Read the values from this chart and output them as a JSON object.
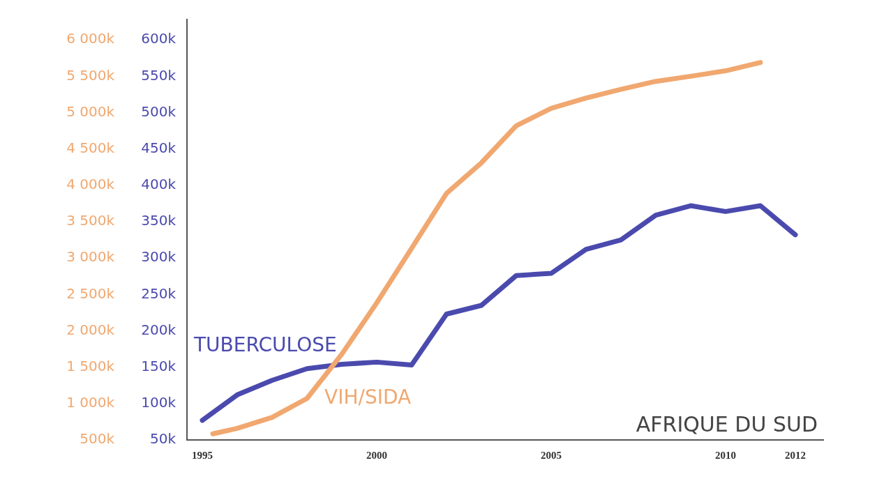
{
  "chart_data": {
    "type": "line",
    "title": "AFRIQUE DU SUD",
    "xlim": [
      1994.56,
      2012.8
    ],
    "xticks": [
      1995,
      2000,
      2005,
      2010,
      2012
    ],
    "ylim": [
      50,
      628
    ],
    "yticks": [
      {
        "value": 50,
        "label": "50k"
      },
      {
        "value": 100,
        "label": "100k"
      },
      {
        "value": 150,
        "label": "150k"
      },
      {
        "value": 200,
        "label": "200k"
      },
      {
        "value": 250,
        "label": "250k"
      },
      {
        "value": 300,
        "label": "300k"
      },
      {
        "value": 350,
        "label": "350k"
      },
      {
        "value": 400,
        "label": "400k"
      },
      {
        "value": 450,
        "label": "450k"
      },
      {
        "value": 500,
        "label": "500k"
      },
      {
        "value": 550,
        "label": "550k"
      },
      {
        "value": 600,
        "label": "600k"
      }
    ],
    "y2lim": [
      500,
      6280
    ],
    "y2ticks": [
      {
        "value": 500,
        "label": "500k"
      },
      {
        "value": 1000,
        "label": "1 000k"
      },
      {
        "value": 1500,
        "label": "1 500k"
      },
      {
        "value": 2000,
        "label": "2 000k"
      },
      {
        "value": 2500,
        "label": "2 500k"
      },
      {
        "value": 3000,
        "label": "3 000k"
      },
      {
        "value": 3500,
        "label": "3 500k"
      },
      {
        "value": 4000,
        "label": "4 000k"
      },
      {
        "value": 4500,
        "label": "4 500k"
      },
      {
        "value": 5000,
        "label": "5 000k"
      },
      {
        "value": 5500,
        "label": "5 500k"
      },
      {
        "value": 6000,
        "label": "6 000k"
      }
    ],
    "series": [
      {
        "name": "TUBERCULOSE",
        "color": "#4a4aae",
        "x": [
          1995,
          1996,
          1997,
          1998,
          1999,
          2000,
          2001,
          2002,
          2003,
          2004,
          2005,
          2006,
          2007,
          2008,
          2009,
          2010,
          2011,
          2012
        ],
        "values": [
          77,
          112,
          132,
          148,
          154,
          157,
          153,
          223,
          235,
          276,
          279,
          312,
          325,
          359,
          372,
          364,
          372,
          332
        ]
      },
      {
        "name": "VIH/SIDA",
        "color": "#f0a870",
        "axis": "y2",
        "x": [
          1995.3,
          1996,
          1997,
          1998,
          1999,
          2000,
          2001,
          2002,
          2003,
          2004,
          2005,
          2006,
          2007,
          2008,
          2009,
          2010,
          2011
        ],
        "values": [
          584,
          660,
          810,
          1070,
          1680,
          2385,
          3135,
          3890,
          4310,
          4820,
          5060,
          5200,
          5320,
          5430,
          5500,
          5575,
          5690
        ]
      }
    ],
    "grid": false,
    "legend": false,
    "marker": "none",
    "line_style": "solid"
  }
}
